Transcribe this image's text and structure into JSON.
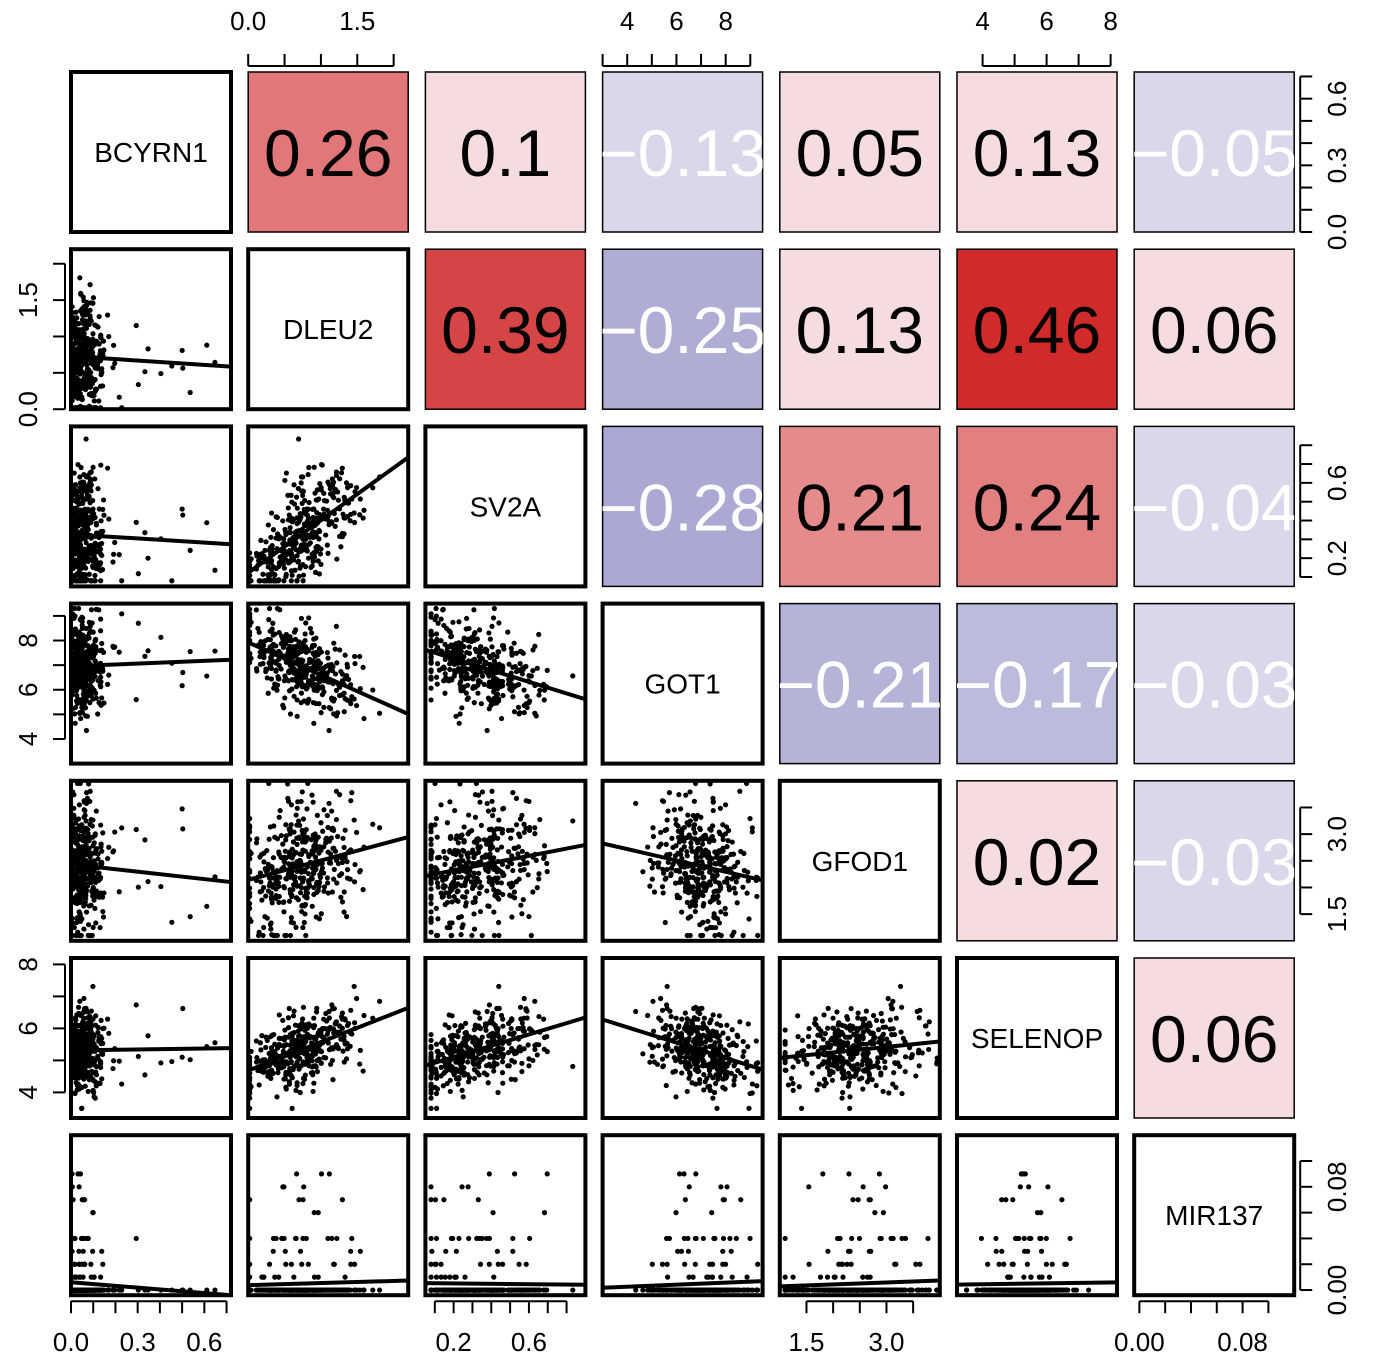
{
  "chart_data": {
    "type": "scatter_matrix",
    "variables": [
      "BCYRN1",
      "DLEU2",
      "SV2A",
      "GOT1",
      "GFOD1",
      "SELENOP",
      "MIR137"
    ],
    "ranges": [
      [
        0.0,
        0.72
      ],
      [
        0.0,
        2.2
      ],
      [
        0.05,
        0.9
      ],
      [
        3.0,
        9.5
      ],
      [
        1.0,
        4.0
      ],
      [
        3.2,
        8.2
      ],
      [
        -0.004,
        0.12
      ]
    ],
    "upper_correlations": [
      {
        "row": 0,
        "col": 1,
        "value": 0.26,
        "label": "0.26"
      },
      {
        "row": 0,
        "col": 2,
        "value": 0.1,
        "label": "0.1"
      },
      {
        "row": 0,
        "col": 3,
        "value": -0.13,
        "label": "−0.13"
      },
      {
        "row": 0,
        "col": 4,
        "value": 0.05,
        "label": "0.05"
      },
      {
        "row": 0,
        "col": 5,
        "value": 0.13,
        "label": "0.13"
      },
      {
        "row": 0,
        "col": 6,
        "value": -0.05,
        "label": "−0.05"
      },
      {
        "row": 1,
        "col": 2,
        "value": 0.39,
        "label": "0.39"
      },
      {
        "row": 1,
        "col": 3,
        "value": -0.25,
        "label": "−0.25"
      },
      {
        "row": 1,
        "col": 4,
        "value": 0.13,
        "label": "0.13"
      },
      {
        "row": 1,
        "col": 5,
        "value": 0.46,
        "label": "0.46"
      },
      {
        "row": 1,
        "col": 6,
        "value": 0.06,
        "label": "0.06"
      },
      {
        "row": 2,
        "col": 3,
        "value": -0.28,
        "label": "−0.28"
      },
      {
        "row": 2,
        "col": 4,
        "value": 0.21,
        "label": "0.21"
      },
      {
        "row": 2,
        "col": 5,
        "value": 0.24,
        "label": "0.24"
      },
      {
        "row": 2,
        "col": 6,
        "value": -0.04,
        "label": "−0.04"
      },
      {
        "row": 3,
        "col": 4,
        "value": -0.21,
        "label": "−0.21"
      },
      {
        "row": 3,
        "col": 5,
        "value": -0.17,
        "label": "−0.17"
      },
      {
        "row": 3,
        "col": 6,
        "value": -0.03,
        "label": "−0.03"
      },
      {
        "row": 4,
        "col": 5,
        "value": 0.02,
        "label": "0.02"
      },
      {
        "row": 4,
        "col": 6,
        "value": -0.03,
        "label": "−0.03"
      },
      {
        "row": 5,
        "col": 6,
        "value": 0.06,
        "label": "0.06"
      }
    ],
    "axes": {
      "top": [
        {
          "col": 1,
          "ticks": [
            0,
            0.5,
            1,
            1.5,
            2
          ],
          "labels": [
            "0.0",
            "1.5"
          ],
          "label_values": [
            0,
            1.5
          ]
        },
        {
          "col": 3,
          "ticks": [
            3,
            4,
            5,
            6,
            7,
            8,
            9
          ],
          "labels": [
            "4",
            "6",
            "8"
          ],
          "label_values": [
            4,
            6,
            8
          ]
        },
        {
          "col": 5,
          "ticks": [
            4,
            5,
            6,
            7,
            8
          ],
          "labels": [
            "4",
            "6",
            "8"
          ],
          "label_values": [
            4,
            6,
            8
          ]
        }
      ],
      "bottom": [
        {
          "col": 0,
          "ticks": [
            0,
            0.1,
            0.2,
            0.3,
            0.4,
            0.5,
            0.6,
            0.7
          ],
          "labels": [
            "0.0",
            "0.3",
            "0.6"
          ],
          "label_values": [
            0,
            0.3,
            0.6
          ]
        },
        {
          "col": 2,
          "ticks": [
            0.1,
            0.2,
            0.3,
            0.4,
            0.5,
            0.6,
            0.7,
            0.8
          ],
          "labels": [
            "0.2",
            "0.6"
          ],
          "label_values": [
            0.2,
            0.6
          ]
        },
        {
          "col": 4,
          "ticks": [
            1.5,
            2,
            2.5,
            3,
            3.5
          ],
          "labels": [
            "1.5",
            "3.0"
          ],
          "label_values": [
            1.5,
            3.0
          ]
        },
        {
          "col": 6,
          "ticks": [
            0,
            0.02,
            0.04,
            0.06,
            0.08,
            0.1
          ],
          "labels": [
            "0.00",
            "0.08"
          ],
          "label_values": [
            0,
            0.08
          ]
        }
      ],
      "left": [
        {
          "row": 1,
          "ticks": [
            0,
            0.5,
            1,
            1.5,
            2
          ],
          "labels": [
            "0.0",
            "1.5"
          ],
          "label_values": [
            0,
            1.5
          ]
        },
        {
          "row": 3,
          "ticks": [
            4,
            5,
            6,
            7,
            8,
            9
          ],
          "labels": [
            "4",
            "6",
            "8"
          ],
          "label_values": [
            4,
            6,
            8
          ]
        },
        {
          "row": 5,
          "ticks": [
            4,
            5,
            6,
            7,
            8
          ],
          "labels": [
            "4",
            "6",
            "8"
          ],
          "label_values": [
            4,
            6,
            8
          ]
        }
      ],
      "right": [
        {
          "row": 0,
          "ticks": [
            0,
            0.1,
            0.2,
            0.3,
            0.4,
            0.5,
            0.6,
            0.7
          ],
          "labels": [
            "0.0",
            "0.3",
            "0.6"
          ],
          "label_values": [
            0,
            0.3,
            0.6
          ]
        },
        {
          "row": 2,
          "ticks": [
            0.1,
            0.2,
            0.3,
            0.4,
            0.5,
            0.6,
            0.7,
            0.8
          ],
          "labels": [
            "0.2",
            "0.6"
          ],
          "label_values": [
            0.2,
            0.6
          ]
        },
        {
          "row": 4,
          "ticks": [
            1.5,
            2,
            2.5,
            3,
            3.5
          ],
          "labels": [
            "1.5",
            "3.0"
          ],
          "label_values": [
            1.5,
            3.0
          ]
        },
        {
          "row": 6,
          "ticks": [
            0,
            0.02,
            0.04,
            0.06,
            0.08,
            0.1
          ],
          "labels": [
            "0.00",
            "0.08"
          ],
          "label_values": [
            0,
            0.08
          ]
        }
      ]
    },
    "colors": {
      "positive": "#d12a2a",
      "negative": "#8a8ac4",
      "positive_light": "#f5dcdf",
      "negative_light": "#d8d8ea",
      "point": "#000000",
      "frame": "#000000"
    }
  }
}
